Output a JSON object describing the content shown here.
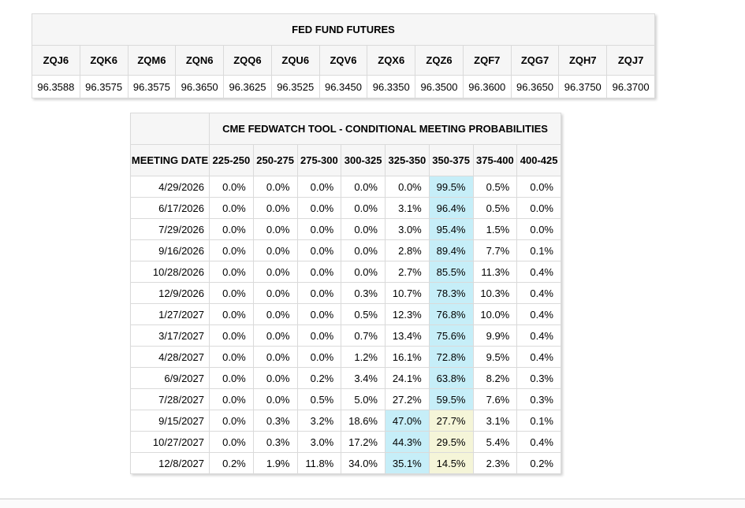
{
  "futures_table": {
    "title": "FED FUND FUTURES",
    "columns": [
      "ZQJ6",
      "ZQK6",
      "ZQM6",
      "ZQN6",
      "ZQQ6",
      "ZQU6",
      "ZQV6",
      "ZQX6",
      "ZQZ6",
      "ZQF7",
      "ZQG7",
      "ZQH7",
      "ZQJ7"
    ],
    "values": [
      "96.3588",
      "96.3575",
      "96.3575",
      "96.3650",
      "96.3625",
      "96.3525",
      "96.3450",
      "96.3350",
      "96.3500",
      "96.3600",
      "96.3650",
      "96.3750",
      "96.3700"
    ]
  },
  "fedwatch_table": {
    "title": "CME FEDWATCH TOOL - CONDITIONAL MEETING PROBABILITIES",
    "date_header": "MEETING DATE",
    "rate_headers": [
      "225-250",
      "250-275",
      "275-300",
      "300-325",
      "325-350",
      "350-375",
      "375-400",
      "400-425"
    ],
    "highlight_colors": {
      "blue": "#c6eef8",
      "yellow": "#f5f5d8"
    },
    "rows": [
      {
        "date": "4/29/2026",
        "values": [
          "0.0%",
          "0.0%",
          "0.0%",
          "0.0%",
          "0.0%",
          "99.5%",
          "0.5%",
          "0.0%"
        ],
        "highlights": [
          "",
          "",
          "",
          "",
          "",
          "blue",
          "",
          ""
        ]
      },
      {
        "date": "6/17/2026",
        "values": [
          "0.0%",
          "0.0%",
          "0.0%",
          "0.0%",
          "3.1%",
          "96.4%",
          "0.5%",
          "0.0%"
        ],
        "highlights": [
          "",
          "",
          "",
          "",
          "",
          "blue",
          "",
          ""
        ]
      },
      {
        "date": "7/29/2026",
        "values": [
          "0.0%",
          "0.0%",
          "0.0%",
          "0.0%",
          "3.0%",
          "95.4%",
          "1.5%",
          "0.0%"
        ],
        "highlights": [
          "",
          "",
          "",
          "",
          "",
          "blue",
          "",
          ""
        ]
      },
      {
        "date": "9/16/2026",
        "values": [
          "0.0%",
          "0.0%",
          "0.0%",
          "0.0%",
          "2.8%",
          "89.4%",
          "7.7%",
          "0.1%"
        ],
        "highlights": [
          "",
          "",
          "",
          "",
          "",
          "blue",
          "",
          ""
        ]
      },
      {
        "date": "10/28/2026",
        "values": [
          "0.0%",
          "0.0%",
          "0.0%",
          "0.0%",
          "2.7%",
          "85.5%",
          "11.3%",
          "0.4%"
        ],
        "highlights": [
          "",
          "",
          "",
          "",
          "",
          "blue",
          "",
          ""
        ]
      },
      {
        "date": "12/9/2026",
        "values": [
          "0.0%",
          "0.0%",
          "0.0%",
          "0.3%",
          "10.7%",
          "78.3%",
          "10.3%",
          "0.4%"
        ],
        "highlights": [
          "",
          "",
          "",
          "",
          "",
          "blue",
          "",
          ""
        ]
      },
      {
        "date": "1/27/2027",
        "values": [
          "0.0%",
          "0.0%",
          "0.0%",
          "0.5%",
          "12.3%",
          "76.8%",
          "10.0%",
          "0.4%"
        ],
        "highlights": [
          "",
          "",
          "",
          "",
          "",
          "blue",
          "",
          ""
        ]
      },
      {
        "date": "3/17/2027",
        "values": [
          "0.0%",
          "0.0%",
          "0.0%",
          "0.7%",
          "13.4%",
          "75.6%",
          "9.9%",
          "0.4%"
        ],
        "highlights": [
          "",
          "",
          "",
          "",
          "",
          "blue",
          "",
          ""
        ]
      },
      {
        "date": "4/28/2027",
        "values": [
          "0.0%",
          "0.0%",
          "0.0%",
          "1.2%",
          "16.1%",
          "72.8%",
          "9.5%",
          "0.4%"
        ],
        "highlights": [
          "",
          "",
          "",
          "",
          "",
          "blue",
          "",
          ""
        ]
      },
      {
        "date": "6/9/2027",
        "values": [
          "0.0%",
          "0.0%",
          "0.2%",
          "3.4%",
          "24.1%",
          "63.8%",
          "8.2%",
          "0.3%"
        ],
        "highlights": [
          "",
          "",
          "",
          "",
          "",
          "blue",
          "",
          ""
        ]
      },
      {
        "date": "7/28/2027",
        "values": [
          "0.0%",
          "0.0%",
          "0.5%",
          "5.0%",
          "27.2%",
          "59.5%",
          "7.6%",
          "0.3%"
        ],
        "highlights": [
          "",
          "",
          "",
          "",
          "",
          "blue",
          "",
          ""
        ]
      },
      {
        "date": "9/15/2027",
        "values": [
          "0.0%",
          "0.3%",
          "3.2%",
          "18.6%",
          "47.0%",
          "27.7%",
          "3.1%",
          "0.1%"
        ],
        "highlights": [
          "",
          "",
          "",
          "",
          "blue",
          "yellow",
          "",
          ""
        ]
      },
      {
        "date": "10/27/2027",
        "values": [
          "0.0%",
          "0.3%",
          "3.0%",
          "17.2%",
          "44.3%",
          "29.5%",
          "5.4%",
          "0.4%"
        ],
        "highlights": [
          "",
          "",
          "",
          "",
          "blue",
          "yellow",
          "",
          ""
        ]
      },
      {
        "date": "12/8/2027",
        "values": [
          "0.2%",
          "1.9%",
          "11.8%",
          "34.0%",
          "35.1%",
          "14.5%",
          "2.3%",
          "0.2%"
        ],
        "highlights": [
          "",
          "",
          "",
          "",
          "blue",
          "yellow",
          "",
          ""
        ]
      }
    ]
  }
}
